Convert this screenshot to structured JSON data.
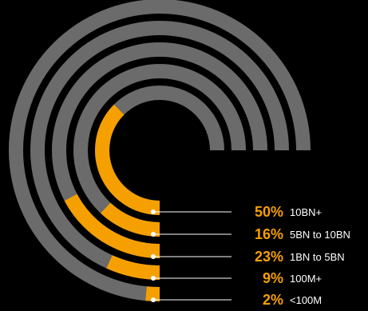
{
  "chart_data": {
    "type": "radial-bar",
    "max_value": 100,
    "colors": {
      "value": "#f5a000",
      "track": "#6b6b6b",
      "background": "#000000",
      "leader": "#ffffff",
      "label": "#ffffff"
    },
    "series": [
      {
        "value": 50,
        "value_label": "50%",
        "label": "10BN+"
      },
      {
        "value": 16,
        "value_label": "16%",
        "label": "5BN to 10BN"
      },
      {
        "value": 23,
        "value_label": "23%",
        "label": "1BN to 5BN"
      },
      {
        "value": 9,
        "value_label": "9%",
        "label": "100M+"
      },
      {
        "value": 2,
        "value_label": "2%",
        "label": "<100M"
      }
    ]
  }
}
